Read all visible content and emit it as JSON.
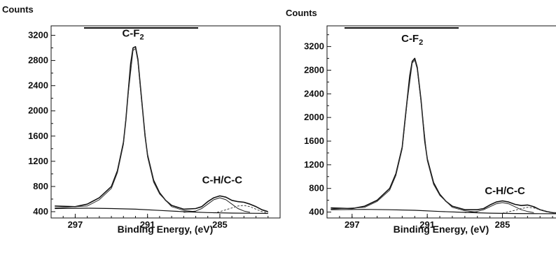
{
  "chart_data": [
    {
      "type": "line",
      "title": "",
      "ylabel": "Counts",
      "xlabel": "Binding Energy, (eV)",
      "x_reversed": true,
      "xlim": [
        299,
        280
      ],
      "ylim": [
        300,
        3350
      ],
      "x_ticks": [
        297,
        291,
        285
      ],
      "y_ticks": [
        400,
        800,
        1200,
        1600,
        2000,
        2400,
        2800,
        3200
      ],
      "annotations": [
        {
          "text": "C-F",
          "sub": "2",
          "x": 292.2,
          "y": 3180
        },
        {
          "text": "C-H/C-C",
          "x": 284.8,
          "y": 850
        }
      ],
      "series": [
        {
          "role": "measured-envelope",
          "x": [
            298.7,
            297.0,
            296.0,
            295.0,
            294.0,
            293.5,
            293.0,
            292.8,
            292.6,
            292.4,
            292.2,
            292.0,
            291.8,
            291.5,
            291.2,
            291.0,
            290.5,
            290.0,
            289.5,
            289.0,
            288.0,
            287.0,
            286.5,
            286.0,
            285.5,
            285.0,
            284.5,
            284.0,
            283.5,
            283.0,
            282.5,
            282.0,
            281.5,
            281.0
          ],
          "y": [
            490,
            480,
            520,
            620,
            800,
            1050,
            1500,
            1850,
            2300,
            2750,
            3000,
            3020,
            2820,
            2200,
            1600,
            1300,
            900,
            700,
            580,
            500,
            440,
            450,
            480,
            560,
            620,
            650,
            630,
            580,
            560,
            550,
            520,
            480,
            430,
            400
          ]
        },
        {
          "role": "C-F2-component",
          "x": [
            298.7,
            296.0,
            295.0,
            294.0,
            293.5,
            293.0,
            292.6,
            292.2,
            292.0,
            291.8,
            291.5,
            291.0,
            290.5,
            290.0,
            289.0,
            288.0,
            287.0
          ],
          "y": [
            460,
            490,
            590,
            770,
            1020,
            1470,
            2270,
            2960,
            2990,
            2790,
            2170,
            1270,
            870,
            680,
            480,
            420,
            400
          ]
        },
        {
          "role": "C-H/C-C-component",
          "x": [
            288.0,
            287.0,
            286.5,
            286.0,
            285.5,
            285.0,
            284.5,
            284.0,
            283.5,
            283.0,
            282.5
          ],
          "y": [
            390,
            410,
            450,
            520,
            590,
            620,
            590,
            520,
            450,
            410,
            390
          ]
        },
        {
          "role": "third-component-dashed",
          "x": [
            285.5,
            285.0,
            284.0,
            283.5,
            283.0,
            282.5,
            282.0,
            281.5,
            281.0
          ],
          "y": [
            380,
            400,
            460,
            490,
            500,
            480,
            440,
            400,
            380
          ]
        },
        {
          "role": "background",
          "x": [
            298.7,
            296.0,
            294.0,
            292.0,
            290.0,
            288.0,
            286.0,
            284.0,
            282.0,
            281.0
          ],
          "y": [
            450,
            455,
            450,
            440,
            420,
            400,
            385,
            378,
            374,
            372
          ]
        }
      ]
    },
    {
      "type": "line",
      "title": "",
      "ylabel": "Counts",
      "xlabel": "Binding Energy, (eV)",
      "x_reversed": true,
      "xlim": [
        299,
        280
      ],
      "ylim": [
        300,
        3550
      ],
      "x_ticks": [
        297,
        291,
        285
      ],
      "y_ticks": [
        400,
        800,
        1200,
        1600,
        2000,
        2400,
        2800,
        3200
      ],
      "annotations": [
        {
          "text": "C-F",
          "sub": "2",
          "x": 292.2,
          "y": 3280
        },
        {
          "text": "C-H/C-C",
          "x": 284.8,
          "y": 700
        }
      ],
      "series": [
        {
          "role": "measured-envelope",
          "x": [
            298.7,
            297.0,
            296.0,
            295.0,
            294.0,
            293.5,
            293.0,
            292.8,
            292.6,
            292.4,
            292.2,
            292.0,
            291.8,
            291.5,
            291.2,
            291.0,
            290.5,
            290.0,
            289.5,
            289.0,
            288.0,
            287.0,
            286.5,
            286.0,
            285.5,
            285.0,
            284.5,
            284.0,
            283.5,
            283.0,
            282.5,
            282.0,
            281.5,
            281.0,
            280.3
          ],
          "y": [
            470,
            460,
            500,
            600,
            800,
            1050,
            1500,
            1900,
            2300,
            2700,
            2950,
            3000,
            2850,
            2300,
            1600,
            1300,
            900,
            700,
            580,
            500,
            440,
            440,
            460,
            520,
            570,
            590,
            570,
            530,
            510,
            520,
            490,
            440,
            410,
            390,
            380
          ]
        },
        {
          "role": "C-F2-component",
          "x": [
            298.7,
            296.0,
            295.0,
            294.0,
            293.5,
            293.0,
            292.6,
            292.2,
            292.0,
            291.8,
            291.5,
            291.0,
            290.5,
            290.0,
            289.0,
            288.0,
            287.0
          ],
          "y": [
            450,
            480,
            580,
            770,
            1020,
            1470,
            2270,
            2920,
            2970,
            2820,
            2270,
            1270,
            870,
            680,
            480,
            420,
            400
          ]
        },
        {
          "role": "C-H/C-C-component",
          "x": [
            288.0,
            287.0,
            286.5,
            286.0,
            285.5,
            285.0,
            284.5,
            284.0,
            283.5,
            283.0,
            282.5
          ],
          "y": [
            390,
            410,
            440,
            490,
            540,
            560,
            540,
            490,
            440,
            410,
            390
          ]
        },
        {
          "role": "third-component-dashed",
          "x": [
            285.0,
            284.0,
            283.5,
            283.0,
            282.5,
            282.0,
            281.5,
            281.0,
            280.3
          ],
          "y": [
            380,
            430,
            460,
            480,
            470,
            440,
            410,
            390,
            375
          ]
        },
        {
          "role": "background",
          "x": [
            298.7,
            296.0,
            294.0,
            292.0,
            290.0,
            288.0,
            286.0,
            284.0,
            282.0,
            280.3
          ],
          "y": [
            440,
            445,
            440,
            430,
            410,
            395,
            382,
            376,
            373,
            372
          ]
        }
      ]
    }
  ]
}
